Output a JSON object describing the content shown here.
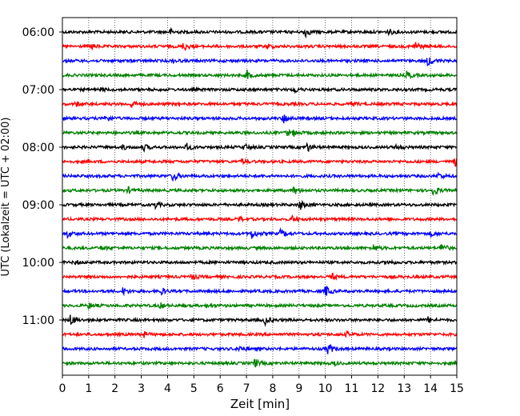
{
  "chart_data": {
    "type": "line",
    "title": "",
    "xlabel": "Zeit  [min]",
    "ylabel": "UTC (Lokalzeit = UTC + 02:00)",
    "xlim": [
      0,
      15
    ],
    "x_ticks": [
      0,
      1,
      2,
      3,
      4,
      5,
      6,
      7,
      8,
      9,
      10,
      11,
      12,
      13,
      14,
      15
    ],
    "x_tick_labels": [
      "0",
      "1",
      "2",
      "3",
      "4",
      "5",
      "6",
      "7",
      "8",
      "9",
      "10",
      "11",
      "12",
      "13",
      "14",
      "15"
    ],
    "y_tick_labels": [
      "06:00",
      "07:00",
      "08:00",
      "09:00",
      "10:00",
      "11:00"
    ],
    "rows_per_hour": 4,
    "trace_count": 24,
    "trace_colors": [
      "#000000",
      "#ff0000",
      "#0000ff",
      "#008000"
    ],
    "grid": "vertical dotted",
    "traces": [
      {
        "start": "06:00",
        "events": [
          [
            4.1,
            0.5
          ],
          [
            9.2,
            1.0
          ],
          [
            12.4,
            0.5
          ]
        ]
      },
      {
        "start": "06:15",
        "events": [
          [
            1.1,
            0.4
          ],
          [
            4.6,
            0.8
          ],
          [
            7.8,
            0.4
          ],
          [
            13.4,
            0.9
          ]
        ]
      },
      {
        "start": "06:30",
        "events": [
          [
            13.9,
            1.0
          ],
          [
            4.2,
            0.3
          ]
        ]
      },
      {
        "start": "06:45",
        "events": [
          [
            7.0,
            0.9
          ],
          [
            13.1,
            0.7
          ]
        ]
      },
      {
        "start": "07:00",
        "events": [
          [
            1.4,
            0.3
          ],
          [
            8.8,
            0.6
          ]
        ]
      },
      {
        "start": "07:15",
        "events": [
          [
            0.5,
            0.4
          ],
          [
            2.6,
            0.7
          ],
          [
            11.0,
            0.4
          ]
        ]
      },
      {
        "start": "07:30",
        "events": [
          [
            1.6,
            0.8
          ],
          [
            8.4,
            0.9
          ]
        ]
      },
      {
        "start": "07:45",
        "events": [
          [
            8.5,
            0.6
          ],
          [
            8.8,
            0.5
          ]
        ]
      },
      {
        "start": "08:00",
        "events": [
          [
            2.3,
            0.4
          ],
          [
            3.1,
            0.5
          ],
          [
            4.7,
            0.7
          ],
          [
            6.9,
            0.6
          ],
          [
            9.3,
            0.8
          ],
          [
            12.7,
            0.4
          ]
        ]
      },
      {
        "start": "08:15",
        "events": [
          [
            6.8,
            0.4
          ],
          [
            14.9,
            0.9
          ]
        ]
      },
      {
        "start": "08:30",
        "events": [
          [
            4.2,
            1.0
          ],
          [
            14.3,
            0.5
          ]
        ]
      },
      {
        "start": "08:45",
        "events": [
          [
            2.5,
            0.5
          ],
          [
            8.8,
            0.7
          ],
          [
            14.1,
            0.9
          ]
        ]
      },
      {
        "start": "09:00",
        "events": [
          [
            3.5,
            0.6
          ],
          [
            9.0,
            1.0
          ]
        ]
      },
      {
        "start": "09:15",
        "events": [
          [
            6.7,
            0.5
          ],
          [
            8.7,
            0.6
          ]
        ]
      },
      {
        "start": "09:30",
        "events": [
          [
            0.2,
            0.7
          ],
          [
            7.2,
            0.9
          ],
          [
            8.3,
            0.8
          ],
          [
            14.0,
            0.5
          ]
        ]
      },
      {
        "start": "09:45",
        "events": [
          [
            1.5,
            0.4
          ],
          [
            11.8,
            0.7
          ],
          [
            14.4,
            1.0
          ]
        ]
      },
      {
        "start": "10:00",
        "events": [
          [
            0.5,
            0.3
          ],
          [
            12.4,
            0.4
          ]
        ]
      },
      {
        "start": "10:15",
        "events": [
          [
            4.9,
            0.5
          ],
          [
            10.2,
            0.7
          ]
        ]
      },
      {
        "start": "10:30",
        "events": [
          [
            2.3,
            0.6
          ],
          [
            3.7,
            0.9
          ],
          [
            10.0,
            1.0
          ]
        ]
      },
      {
        "start": "10:45",
        "events": [
          [
            1.0,
            0.5
          ],
          [
            3.7,
            0.5
          ],
          [
            5.5,
            0.3
          ]
        ]
      },
      {
        "start": "11:00",
        "events": [
          [
            0.3,
            1.0
          ],
          [
            7.7,
            0.8
          ],
          [
            13.9,
            0.5
          ]
        ]
      },
      {
        "start": "11:15",
        "events": [
          [
            3.0,
            0.9
          ],
          [
            10.8,
            0.4
          ]
        ]
      },
      {
        "start": "11:30",
        "events": [
          [
            6.7,
            0.6
          ],
          [
            10.1,
            1.0
          ]
        ]
      },
      {
        "start": "11:45",
        "events": [
          [
            7.3,
            0.8
          ],
          [
            10.3,
            0.4
          ]
        ]
      }
    ]
  }
}
